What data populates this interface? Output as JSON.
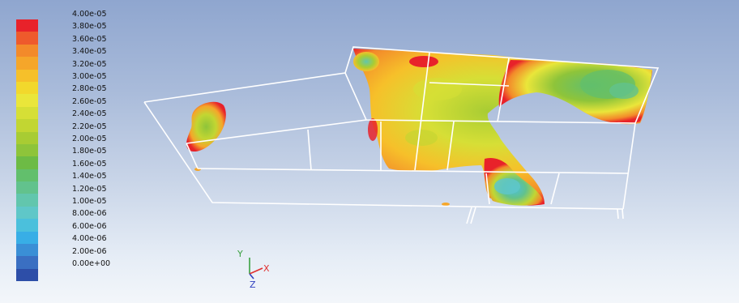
{
  "colorbar": {
    "labels": [
      "4.00e-05",
      "3.80e-05",
      "3.60e-05",
      "3.40e-05",
      "3.20e-05",
      "3.00e-05",
      "2.80e-05",
      "2.60e-05",
      "2.40e-05",
      "2.20e-05",
      "2.00e-05",
      "1.80e-05",
      "1.60e-05",
      "1.40e-05",
      "1.20e-05",
      "1.00e-05",
      "8.00e-06",
      "6.00e-06",
      "4.00e-06",
      "2.00e-06",
      "0.00e+00"
    ],
    "colors": [
      "#e8222a",
      "#ee5a2c",
      "#f38a2a",
      "#f5a62a",
      "#f6c02a",
      "#f2d82c",
      "#eae63a",
      "#d6df36",
      "#c2d632",
      "#a8cc33",
      "#8ec43a",
      "#6dbb45",
      "#62bf6c",
      "#62c28d",
      "#62c6ad",
      "#5fc7c8",
      "#4bc0dc",
      "#38aee6",
      "#3a8fd6",
      "#3a6fc2",
      "#2d4ea8"
    ]
  },
  "axes": {
    "x_label": "X",
    "y_label": "Y",
    "z_label": "Z",
    "x_color": "#e03030",
    "y_color": "#3aa040",
    "z_color": "#3040c0"
  }
}
